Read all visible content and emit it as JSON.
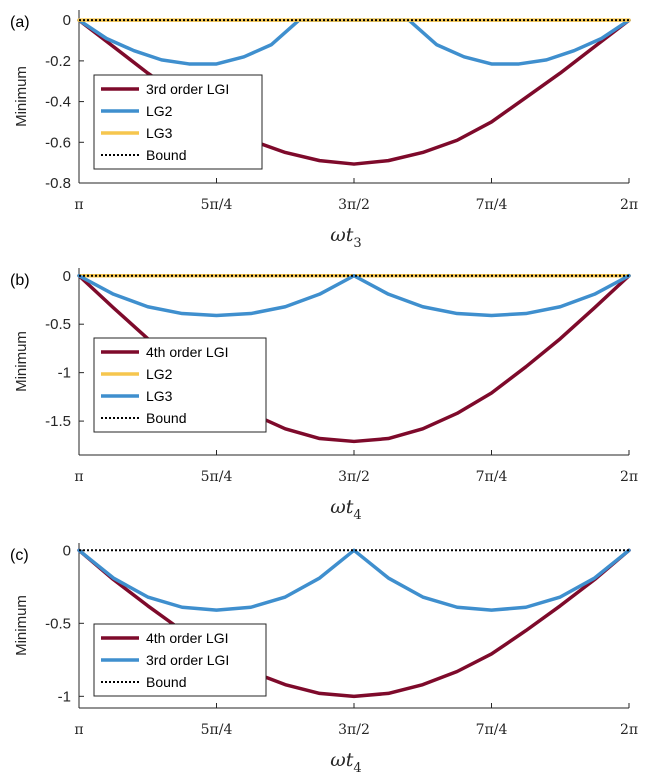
{
  "chart_data": [
    {
      "type": "line",
      "panel_label": "(a)",
      "ylabel": "Minimum",
      "xlabel_main": "ωt",
      "xlabel_sub": "3",
      "x_ticks": [
        "π",
        "5π/4",
        "3π/2",
        "7π/4",
        "2π"
      ],
      "y_ticks": [
        "0",
        "-0.2",
        "-0.4",
        "-0.6",
        "-0.8"
      ],
      "y_tick_values": [
        0,
        -0.2,
        -0.4,
        -0.6,
        -0.8
      ],
      "xlim": [
        1,
        2
      ],
      "ylim": [
        -0.8,
        0.05
      ],
      "legend_position": "lower-left",
      "series": [
        {
          "name": "3rd order LGI",
          "color": "#7e0a2b",
          "x": [
            1,
            1.0625,
            1.125,
            1.1875,
            1.25,
            1.3125,
            1.375,
            1.4375,
            1.5,
            1.5625,
            1.625,
            1.6875,
            1.75,
            1.8125,
            1.875,
            1.9375,
            2
          ],
          "y": [
            0,
            -0.13,
            -0.26,
            -0.38,
            -0.5,
            -0.59,
            -0.65,
            -0.69,
            -0.707,
            -0.69,
            -0.65,
            -0.59,
            -0.5,
            -0.38,
            -0.26,
            -0.13,
            0
          ]
        },
        {
          "name": "LG2",
          "color": "#3f8fce",
          "x": [
            1,
            1.05,
            1.1,
            1.15,
            1.2,
            1.25,
            1.3,
            1.35,
            1.4,
            1.5,
            1.6,
            1.65,
            1.7,
            1.75,
            1.8,
            1.85,
            1.9,
            1.95,
            2
          ],
          "y": [
            0,
            -0.09,
            -0.15,
            -0.195,
            -0.215,
            -0.215,
            -0.18,
            -0.12,
            0,
            0,
            0,
            -0.12,
            -0.18,
            -0.215,
            -0.215,
            -0.195,
            -0.15,
            -0.09,
            0
          ]
        },
        {
          "name": "LG3",
          "color": "#f6c64e",
          "x": [
            1,
            2
          ],
          "y": [
            0,
            0
          ]
        },
        {
          "name": "Bound",
          "color": "#000000",
          "dashed": true,
          "x": [
            1,
            2
          ],
          "y": [
            0,
            0
          ]
        }
      ]
    },
    {
      "type": "line",
      "panel_label": "(b)",
      "ylabel": "Minimum",
      "xlabel_main": "ωt",
      "xlabel_sub": "4",
      "x_ticks": [
        "π",
        "5π/4",
        "3π/2",
        "7π/4",
        "2π"
      ],
      "y_ticks": [
        "0",
        "-0.5",
        "-1",
        "-1.5"
      ],
      "y_tick_values": [
        0,
        -0.5,
        -1,
        -1.5
      ],
      "xlim": [
        1,
        2
      ],
      "ylim": [
        -1.85,
        0.08
      ],
      "legend_position": "lower-left",
      "series": [
        {
          "name": "4th order LGI",
          "color": "#7e0a2b",
          "x": [
            1,
            1.0625,
            1.125,
            1.1875,
            1.25,
            1.3125,
            1.375,
            1.4375,
            1.5,
            1.5625,
            1.625,
            1.6875,
            1.75,
            1.8125,
            1.875,
            1.9375,
            2
          ],
          "y": [
            0,
            -0.33,
            -0.65,
            -0.94,
            -1.21,
            -1.42,
            -1.58,
            -1.68,
            -1.71,
            -1.68,
            -1.58,
            -1.42,
            -1.21,
            -0.94,
            -0.65,
            -0.33,
            0
          ]
        },
        {
          "name": "LG2",
          "color": "#f6c64e",
          "x": [
            1,
            2
          ],
          "y": [
            0,
            0
          ]
        },
        {
          "name": "LG3",
          "color": "#3f8fce",
          "x": [
            1,
            1.0625,
            1.125,
            1.1875,
            1.25,
            1.3125,
            1.375,
            1.4375,
            1.5,
            1.5625,
            1.625,
            1.6875,
            1.75,
            1.8125,
            1.875,
            1.9375,
            2
          ],
          "y": [
            0,
            -0.19,
            -0.32,
            -0.39,
            -0.41,
            -0.39,
            -0.32,
            -0.19,
            0,
            -0.19,
            -0.32,
            -0.39,
            -0.41,
            -0.39,
            -0.32,
            -0.19,
            0
          ]
        },
        {
          "name": "Bound",
          "color": "#000000",
          "dashed": true,
          "x": [
            1,
            2
          ],
          "y": [
            0,
            0
          ]
        }
      ]
    },
    {
      "type": "line",
      "panel_label": "(c)",
      "ylabel": "Minimum",
      "xlabel_main": "ωt",
      "xlabel_sub": "4",
      "x_ticks": [
        "π",
        "5π/4",
        "3π/2",
        "7π/4",
        "2π"
      ],
      "y_ticks": [
        "0",
        "-0.5",
        "-1"
      ],
      "y_tick_values": [
        0,
        -0.5,
        -1
      ],
      "xlim": [
        1,
        2
      ],
      "ylim": [
        -1.08,
        0.05
      ],
      "legend_position": "lower-left",
      "series": [
        {
          "name": "4th order LGI",
          "color": "#7e0a2b",
          "x": [
            1,
            1.0625,
            1.125,
            1.1875,
            1.25,
            1.3125,
            1.375,
            1.4375,
            1.5,
            1.5625,
            1.625,
            1.6875,
            1.75,
            1.8125,
            1.875,
            1.9375,
            2
          ],
          "y": [
            0,
            -0.2,
            -0.38,
            -0.55,
            -0.71,
            -0.83,
            -0.92,
            -0.98,
            -1.0,
            -0.98,
            -0.92,
            -0.83,
            -0.71,
            -0.55,
            -0.38,
            -0.2,
            0
          ]
        },
        {
          "name": "3rd order LGI",
          "color": "#3f8fce",
          "x": [
            1,
            1.0625,
            1.125,
            1.1875,
            1.25,
            1.3125,
            1.375,
            1.4375,
            1.5,
            1.5625,
            1.625,
            1.6875,
            1.75,
            1.8125,
            1.875,
            1.9375,
            2
          ],
          "y": [
            0,
            -0.19,
            -0.32,
            -0.39,
            -0.41,
            -0.39,
            -0.32,
            -0.19,
            0,
            -0.19,
            -0.32,
            -0.39,
            -0.41,
            -0.39,
            -0.32,
            -0.19,
            0
          ]
        },
        {
          "name": "Bound",
          "color": "#000000",
          "dashed": true,
          "x": [
            1,
            2
          ],
          "y": [
            0,
            0
          ]
        }
      ]
    }
  ]
}
